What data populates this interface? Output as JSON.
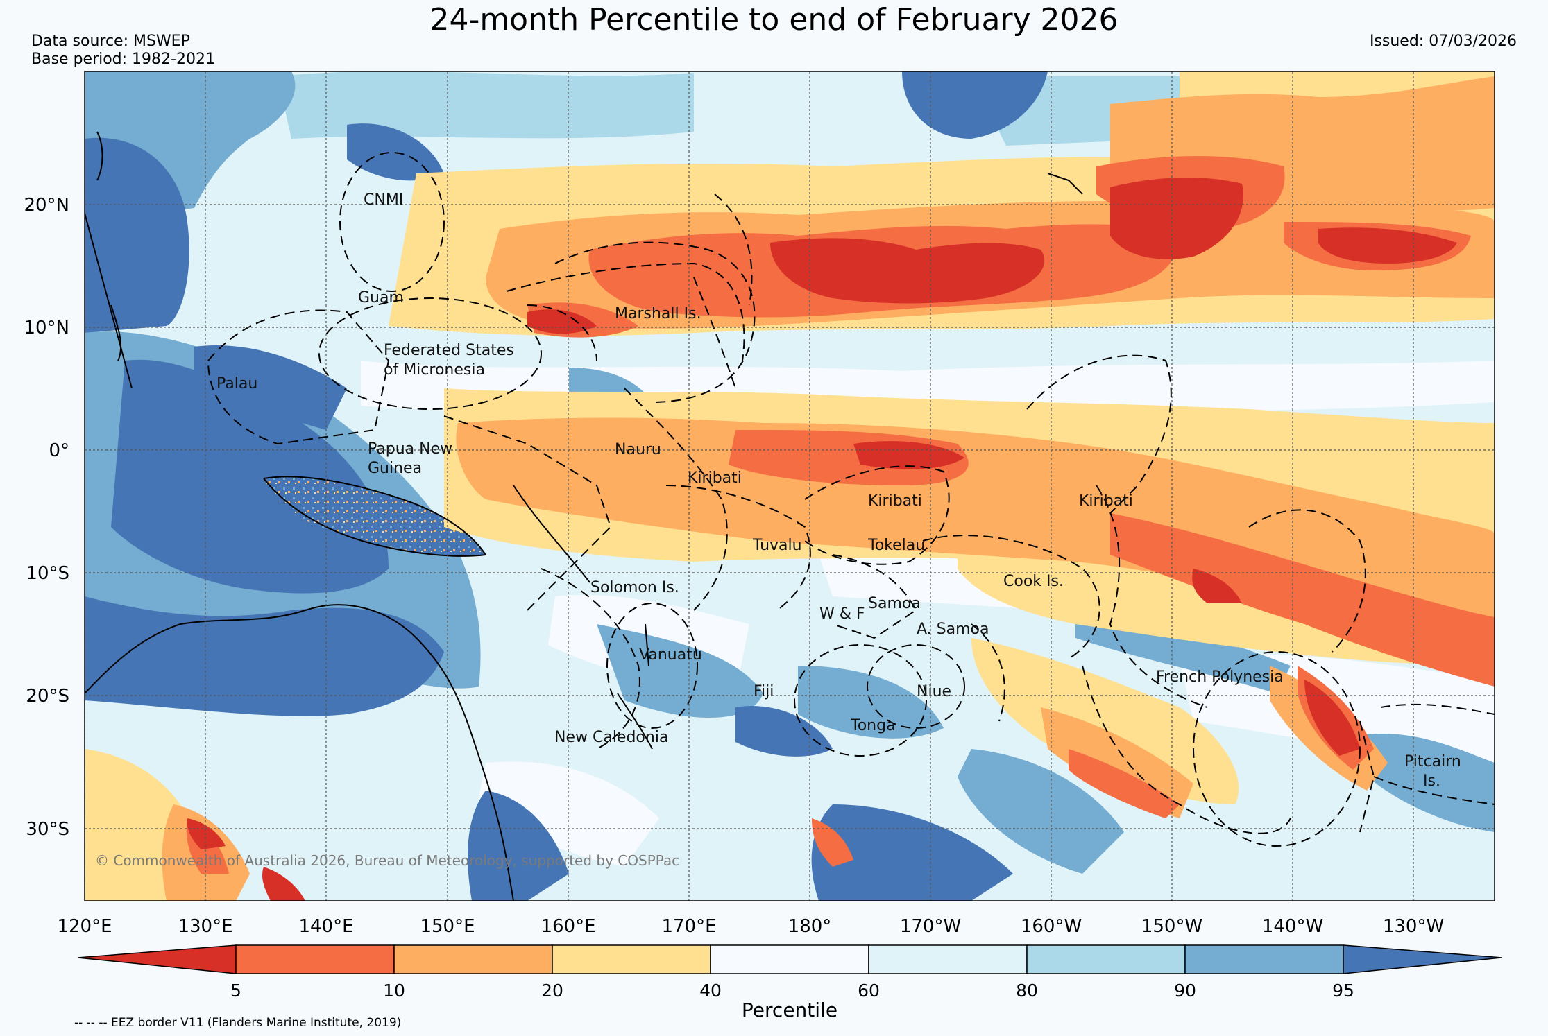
{
  "header": {
    "title": "24-month Percentile to end of February 2026",
    "data_source": "Data source: MSWEP",
    "base_period": "Base period: 1982-2021",
    "issued": "Issued: 07/03/2026"
  },
  "map": {
    "lon_labels": [
      "120°E",
      "130°E",
      "140°E",
      "150°E",
      "160°E",
      "170°E",
      "180°",
      "170°W",
      "160°W",
      "150°W",
      "140°W",
      "130°W"
    ],
    "lat_labels": [
      "20°N",
      "10°N",
      "0°",
      "10°S",
      "20°S",
      "30°S"
    ],
    "regions": {
      "cnmi": "CNMI",
      "guam": "Guam",
      "marshall": "Marshall Is.",
      "fsm_1": "Federated States",
      "fsm_2": "of Micronesia",
      "palau": "Palau",
      "png_1": "Papua New",
      "png_2": "Guinea",
      "nauru": "Nauru",
      "kiribati_w": "Kiribati",
      "kiribati_c": "Kiribati",
      "kiribati_e": "Kiribati",
      "tuvalu": "Tuvalu",
      "tokelau": "Tokelau",
      "solomon": "Solomon Is.",
      "samoa": "Samoa",
      "wf": "W & F",
      "asamoa": "A. Samoa",
      "cook": "Cook Is.",
      "vanuatu": "Vanuatu",
      "fiji": "Fiji",
      "niue": "Niue",
      "tonga": "Tonga",
      "french_polynesia": "French Polynesia",
      "new_caledonia": "New Caledonia",
      "pitcairn_1": "Pitcairn",
      "pitcairn_2": "Is."
    },
    "copyright": "© Commonwealth of Australia 2026, Bureau of Meteorology, supported by COSPPac"
  },
  "colorbar": {
    "colors": [
      "#d73027",
      "#f46d43",
      "#fdae61",
      "#fee090",
      "#f7fbff",
      "#e0f3f8",
      "#abd9e9",
      "#74add1",
      "#4575b4"
    ],
    "ticks": [
      "5",
      "10",
      "20",
      "40",
      "60",
      "80",
      "90",
      "95"
    ],
    "label": "Percentile"
  },
  "footer": {
    "eez_note": "-- -- -- EEZ border V11 (Flanders Marine Institute, 2019)"
  }
}
